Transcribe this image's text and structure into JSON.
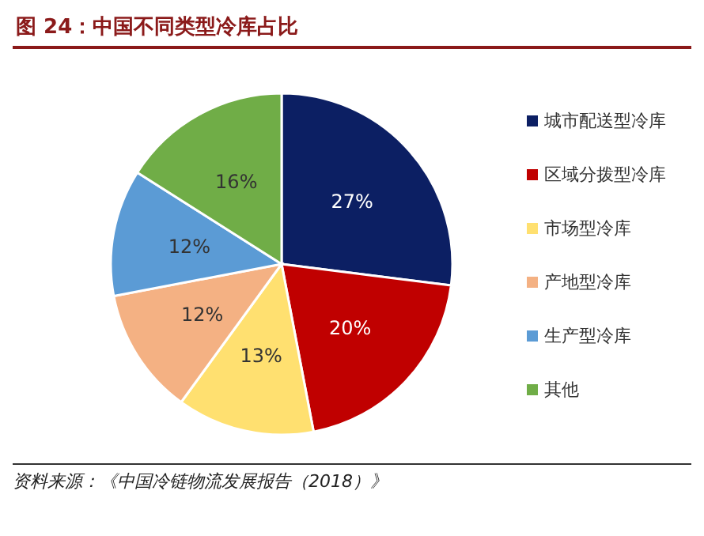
{
  "chart_data": {
    "type": "pie",
    "title": "图 24：中国不同类型冷库占比",
    "categories": [
      "城市配送型冷库",
      "区域分拨型冷库",
      "市场型冷库",
      "产地型冷库",
      "生产型冷库",
      "其他"
    ],
    "values": [
      27,
      20,
      13,
      12,
      12,
      16
    ],
    "value_labels": [
      "27%",
      "20%",
      "13%",
      "12%",
      "12%",
      "16%"
    ],
    "colors": [
      "#0c1f63",
      "#c00000",
      "#ffe070",
      "#f4b183",
      "#5b9bd5",
      "#70ad47"
    ],
    "legend": "right",
    "annotations": [
      "资料来源：《中国冷链物流发展报告（2018）》"
    ]
  }
}
